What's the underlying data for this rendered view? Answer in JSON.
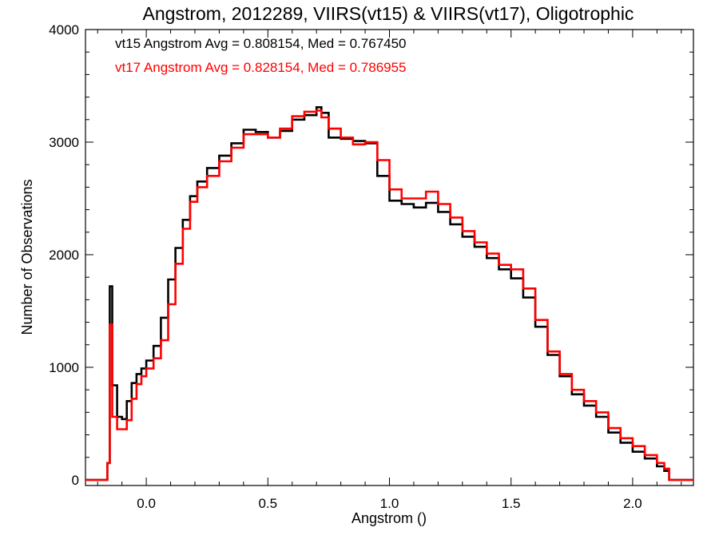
{
  "chart_data": {
    "type": "line",
    "step": true,
    "title": "Angstrom, 2012289, VIIRS(vt15) & VIIRS(vt17), Oligotrophic",
    "xlabel": "Angstrom ()",
    "ylabel": "Number of Observations",
    "xlim": [
      -0.25,
      2.25
    ],
    "ylim": [
      -50,
      4000
    ],
    "xticks": [
      0.0,
      0.5,
      1.0,
      1.5,
      2.0
    ],
    "xtick_labels": [
      "0.0",
      "0.5",
      "1.0",
      "1.5",
      "2.0"
    ],
    "yticks": [
      0,
      1000,
      2000,
      3000,
      4000
    ],
    "ytick_labels": [
      "0",
      "1000",
      "2000",
      "3000",
      "4000"
    ],
    "grid": false,
    "annotations": [
      {
        "text": "vt15 Angstrom Avg = 0.808154, Med = 0.767450",
        "color": "#000000"
      },
      {
        "text": "vt17 Angstrom Avg = 0.828154, Med = 0.786955",
        "color": "#ff0000"
      }
    ],
    "series": [
      {
        "color": "#000000",
        "x": [
          -0.25,
          -0.16,
          -0.15,
          -0.14,
          -0.12,
          -0.1,
          -0.08,
          -0.06,
          -0.04,
          -0.02,
          0.0,
          0.03,
          0.06,
          0.09,
          0.12,
          0.15,
          0.18,
          0.21,
          0.25,
          0.3,
          0.35,
          0.4,
          0.45,
          0.5,
          0.55,
          0.6,
          0.65,
          0.7,
          0.72,
          0.75,
          0.8,
          0.85,
          0.9,
          0.95,
          1.0,
          1.05,
          1.1,
          1.15,
          1.2,
          1.25,
          1.3,
          1.35,
          1.4,
          1.45,
          1.5,
          1.55,
          1.6,
          1.65,
          1.7,
          1.75,
          1.8,
          1.85,
          1.9,
          1.95,
          2.0,
          2.05,
          2.1,
          2.13,
          2.15,
          2.25
        ],
        "y": [
          0,
          150,
          1720,
          840,
          560,
          540,
          700,
          860,
          940,
          990,
          1060,
          1190,
          1440,
          1780,
          2060,
          2310,
          2520,
          2650,
          2770,
          2880,
          2990,
          3110,
          3090,
          3040,
          3100,
          3200,
          3240,
          3310,
          3260,
          3040,
          3030,
          3010,
          2990,
          2700,
          2480,
          2450,
          2420,
          2460,
          2380,
          2270,
          2160,
          2070,
          1970,
          1870,
          1790,
          1620,
          1360,
          1110,
          920,
          760,
          660,
          560,
          420,
          330,
          250,
          190,
          120,
          80,
          0,
          0
        ]
      },
      {
        "color": "#ff0000",
        "x": [
          -0.25,
          -0.16,
          -0.15,
          -0.14,
          -0.12,
          -0.1,
          -0.08,
          -0.06,
          -0.04,
          -0.02,
          0.0,
          0.03,
          0.06,
          0.09,
          0.12,
          0.15,
          0.18,
          0.21,
          0.25,
          0.3,
          0.35,
          0.4,
          0.45,
          0.5,
          0.55,
          0.6,
          0.65,
          0.7,
          0.72,
          0.75,
          0.8,
          0.85,
          0.9,
          0.95,
          1.0,
          1.05,
          1.1,
          1.15,
          1.2,
          1.25,
          1.3,
          1.35,
          1.4,
          1.45,
          1.5,
          1.55,
          1.6,
          1.65,
          1.7,
          1.75,
          1.8,
          1.85,
          1.9,
          1.95,
          2.0,
          2.05,
          2.1,
          2.13,
          2.15,
          2.25
        ],
        "y": [
          0,
          150,
          1380,
          560,
          450,
          450,
          530,
          720,
          850,
          920,
          990,
          1080,
          1240,
          1560,
          1920,
          2230,
          2470,
          2600,
          2700,
          2830,
          2950,
          3070,
          3070,
          3040,
          3120,
          3230,
          3270,
          3280,
          3220,
          3120,
          3040,
          2980,
          3000,
          2840,
          2580,
          2500,
          2500,
          2560,
          2450,
          2330,
          2210,
          2110,
          2010,
          1910,
          1870,
          1700,
          1420,
          1140,
          940,
          800,
          700,
          600,
          460,
          370,
          300,
          220,
          150,
          100,
          0,
          0
        ]
      }
    ]
  }
}
